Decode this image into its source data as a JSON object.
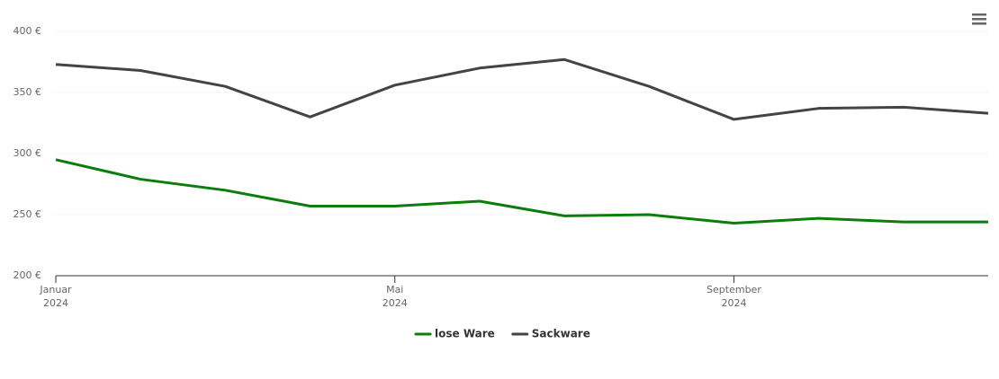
{
  "chart_data": {
    "type": "line",
    "x": [
      "2024-01",
      "2024-02",
      "2024-03",
      "2024-04",
      "2024-05",
      "2024-06",
      "2024-07",
      "2024-08",
      "2024-09",
      "2024-10",
      "2024-11",
      "2024-12"
    ],
    "series": [
      {
        "name": "lose Ware",
        "color": "#0c7d0c",
        "values": [
          295,
          279,
          270,
          257,
          257,
          261,
          249,
          250,
          243,
          247,
          244,
          244
        ]
      },
      {
        "name": "Sackware",
        "color": "#434348",
        "values": [
          373,
          368,
          355,
          330,
          356,
          370,
          377,
          355,
          328,
          337,
          338,
          333
        ]
      }
    ],
    "xlim": [
      "2024-01",
      "2024-12"
    ],
    "xticks": [
      {
        "value": "2024-01",
        "label": [
          "Januar",
          "2024"
        ]
      },
      {
        "value": "2024-05",
        "label": [
          "Mai",
          "2024"
        ]
      },
      {
        "value": "2024-09",
        "label": [
          "September",
          "2024"
        ]
      }
    ],
    "ylim": [
      200,
      400
    ],
    "yticks": [
      {
        "value": 200,
        "label": "200 €"
      },
      {
        "value": 250,
        "label": "250 €"
      },
      {
        "value": 300,
        "label": "300 €"
      },
      {
        "value": 350,
        "label": "350 €"
      },
      {
        "value": 400,
        "label": "400 €"
      }
    ],
    "grid": true,
    "legend": "bottom"
  }
}
